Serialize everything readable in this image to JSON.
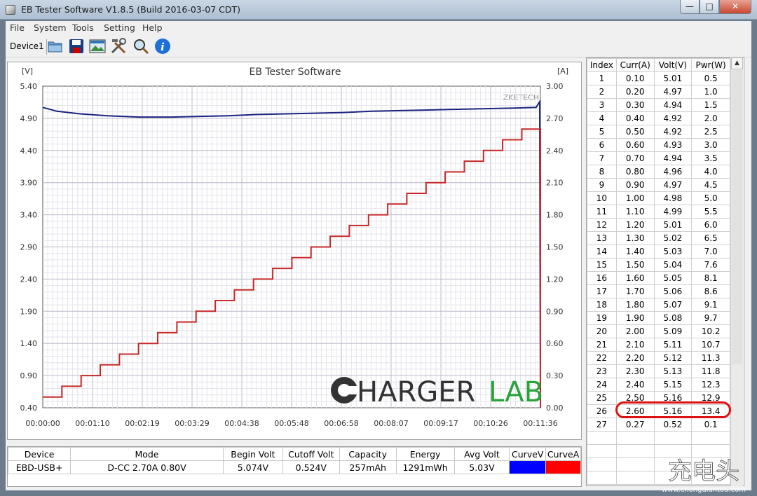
{
  "window": {
    "title": "EB Tester Software V1.8.5 (Build 2016-03-07 CDT)",
    "min_glyph": "—",
    "max_glyph": "□",
    "close_glyph": "✕"
  },
  "menu": [
    "File",
    "System",
    "Tools",
    "Setting",
    "Help"
  ],
  "toolbar": {
    "device_tab": "Device1",
    "tools": [
      "open-icon",
      "save-icon",
      "picture-icon",
      "settings-tools-icon",
      "zoom-icon",
      "info-icon"
    ]
  },
  "chart_data": {
    "type": "line",
    "title": "EB Tester Software",
    "watermark_small": "ZKETECH",
    "left_unit": "[V]",
    "right_unit": "[A]",
    "y_left_ticks": [
      "5.40",
      "4.90",
      "4.40",
      "3.90",
      "3.40",
      "2.90",
      "2.40",
      "1.90",
      "1.40",
      "0.90",
      "0.40"
    ],
    "y_right_ticks": [
      "3.00",
      "2.70",
      "2.40",
      "2.10",
      "1.80",
      "1.50",
      "1.20",
      "0.90",
      "0.60",
      "0.30",
      "0.00"
    ],
    "x_ticks": [
      "00:00:00",
      "00:01:10",
      "00:02:19",
      "00:03:29",
      "00:04:38",
      "00:05:48",
      "00:06:58",
      "00:08:07",
      "00:09:17",
      "00:10:26",
      "00:11:36"
    ],
    "ylim_left": [
      0.4,
      5.4
    ],
    "ylim_right": [
      0.0,
      3.0
    ],
    "x_range_seconds": [
      0,
      696
    ],
    "grid": true,
    "series": [
      {
        "axis": "left",
        "color": "#1a237e",
        "points": [
          [
            0,
            5.07
          ],
          [
            20,
            5.01
          ],
          [
            52,
            4.97
          ],
          [
            90,
            4.94
          ],
          [
            135,
            4.92
          ],
          [
            180,
            4.92
          ],
          [
            220,
            4.93
          ],
          [
            260,
            4.94
          ],
          [
            300,
            4.96
          ],
          [
            340,
            4.97
          ],
          [
            380,
            4.98
          ],
          [
            420,
            4.99
          ],
          [
            460,
            5.01
          ],
          [
            500,
            5.02
          ],
          [
            540,
            5.03
          ],
          [
            580,
            5.04
          ],
          [
            620,
            5.05
          ],
          [
            660,
            5.06
          ],
          [
            690,
            5.07
          ],
          [
            695,
            5.16
          ],
          [
            696,
            0.52
          ]
        ]
      },
      {
        "axis": "right",
        "color": "#c62828",
        "steps": [
          0.1,
          0.2,
          0.3,
          0.4,
          0.5,
          0.6,
          0.7,
          0.8,
          0.9,
          1.0,
          1.1,
          1.2,
          1.3,
          1.4,
          1.5,
          1.6,
          1.7,
          1.8,
          1.9,
          2.0,
          2.1,
          2.2,
          2.3,
          2.4,
          2.5,
          2.6,
          0.27
        ],
        "step_seconds": 26.8
      }
    ],
    "logo": {
      "part1": "HARGER",
      "part2": "LAB",
      "color1": "#333333",
      "color2": "#29a33a"
    }
  },
  "table": {
    "headers": [
      "Index",
      "Curr(A)",
      "Volt(V)",
      "Pwr(W)"
    ],
    "rows": [
      [
        "1",
        "0.10",
        "5.01",
        "0.5"
      ],
      [
        "2",
        "0.20",
        "4.97",
        "1.0"
      ],
      [
        "3",
        "0.30",
        "4.94",
        "1.5"
      ],
      [
        "4",
        "0.40",
        "4.92",
        "2.0"
      ],
      [
        "5",
        "0.50",
        "4.92",
        "2.5"
      ],
      [
        "6",
        "0.60",
        "4.93",
        "3.0"
      ],
      [
        "7",
        "0.70",
        "4.94",
        "3.5"
      ],
      [
        "8",
        "0.80",
        "4.96",
        "4.0"
      ],
      [
        "9",
        "0.90",
        "4.97",
        "4.5"
      ],
      [
        "10",
        "1.00",
        "4.98",
        "5.0"
      ],
      [
        "11",
        "1.10",
        "4.99",
        "5.5"
      ],
      [
        "12",
        "1.20",
        "5.01",
        "6.0"
      ],
      [
        "13",
        "1.30",
        "5.02",
        "6.5"
      ],
      [
        "14",
        "1.40",
        "5.03",
        "7.0"
      ],
      [
        "15",
        "1.50",
        "5.04",
        "7.6"
      ],
      [
        "16",
        "1.60",
        "5.05",
        "8.1"
      ],
      [
        "17",
        "1.70",
        "5.06",
        "8.6"
      ],
      [
        "18",
        "1.80",
        "5.07",
        "9.1"
      ],
      [
        "19",
        "1.90",
        "5.08",
        "9.7"
      ],
      [
        "20",
        "2.00",
        "5.09",
        "10.2"
      ],
      [
        "21",
        "2.10",
        "5.11",
        "10.7"
      ],
      [
        "22",
        "2.20",
        "5.12",
        "11.3"
      ],
      [
        "23",
        "2.30",
        "5.13",
        "11.8"
      ],
      [
        "24",
        "2.40",
        "5.15",
        "12.3"
      ],
      [
        "25",
        "2.50",
        "5.16",
        "12.9"
      ],
      [
        "26",
        "2.60",
        "5.16",
        "13.4"
      ],
      [
        "27",
        "0.27",
        "0.52",
        "0.1"
      ]
    ],
    "highlighted_row": 26
  },
  "summary": {
    "headers": [
      "Device",
      "Mode",
      "Begin Volt",
      "Cutoff Volt",
      "Capacity",
      "Energy",
      "Avg Volt",
      "CurveV",
      "CurveA"
    ],
    "values": [
      "EBD-USB+",
      "D-CC 2.70A 0.80V",
      "5.074V",
      "0.524V",
      "257mAh",
      "1291mWh",
      "5.03V"
    ],
    "curve_colors": {
      "v": "#0000ff",
      "a": "#ff0000"
    }
  },
  "corner_watermark": {
    "glyphs": "充电头",
    "url": "www.chongdiantou.com"
  }
}
